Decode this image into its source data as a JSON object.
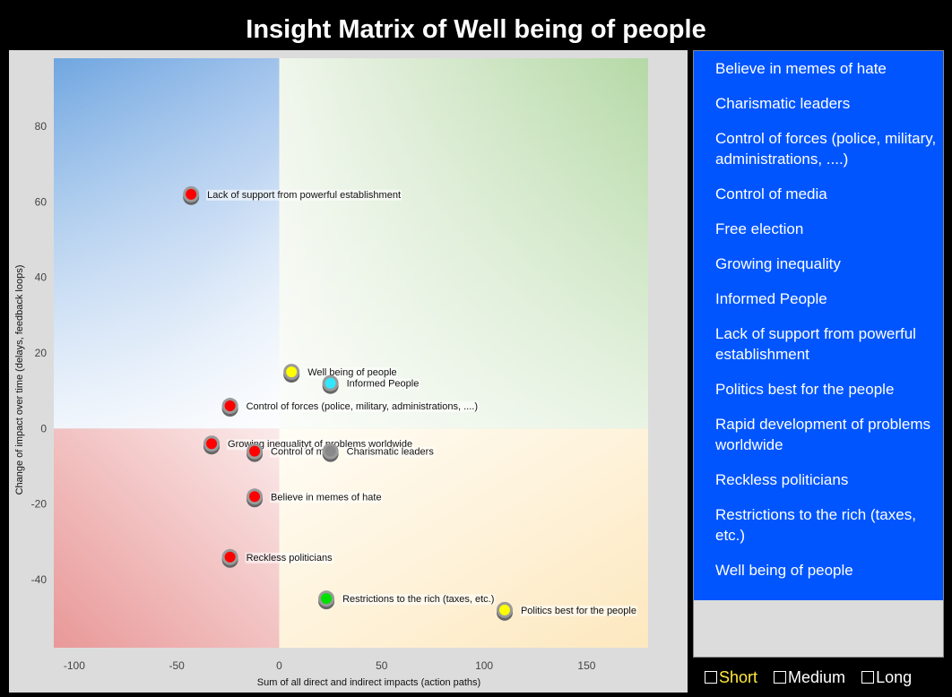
{
  "title": "Insight Matrix of Well being of people",
  "chart_data": {
    "type": "scatter",
    "xlabel": "Sum of all direct and indirect impacts (action paths)",
    "ylabel": "Change of impact over time (delays, feedback loops)",
    "xlim": [
      -110,
      180
    ],
    "ylim": [
      -58,
      98
    ],
    "xticks": [
      -100,
      -50,
      0,
      50,
      100,
      150
    ],
    "yticks": [
      80,
      60,
      40,
      20,
      0,
      -20,
      -40
    ],
    "points": [
      {
        "label": "Lack of support from powerful establishment",
        "x": -43,
        "y": 62,
        "color": "#ff0000"
      },
      {
        "label": "Well being of people",
        "x": 6,
        "y": 15,
        "color": "#ffff00"
      },
      {
        "label": "Informed People",
        "x": 25,
        "y": 12,
        "color": "#33e6ff"
      },
      {
        "label": "Control of forces (police, military, administrations, ....)",
        "x": -24,
        "y": 6,
        "color": "#ff0000"
      },
      {
        "label": "Growing inequality",
        "x": -33,
        "y": -4,
        "color": "#ff0000"
      },
      {
        "label": "Rapid development of problems worldwide",
        "x": -33,
        "y": -4,
        "color": "#ff0000"
      },
      {
        "label": "Control of media",
        "x": -12,
        "y": -6,
        "color": "#ff0000"
      },
      {
        "label": "Charismatic leaders",
        "x": 25,
        "y": -6,
        "color": "#888888"
      },
      {
        "label": "Believe in memes of hate",
        "x": -12,
        "y": -18,
        "color": "#ff0000"
      },
      {
        "label": "Reckless politicians",
        "x": -24,
        "y": -34,
        "color": "#ff0000"
      },
      {
        "label": "Restrictions to the rich (taxes, etc.)",
        "x": 23,
        "y": -45,
        "color": "#00e000"
      },
      {
        "label": "Politics best for the people",
        "x": 110,
        "y": -48,
        "color": "#ffff00"
      }
    ],
    "label_overrides": {
      "Growing inequality": "Growing inequalityt of problems worldwide",
      "Rapid development of problems worldwide": "",
      "Control of media": "Control of medi",
      "Well being of people": "Well being of people"
    }
  },
  "list": [
    "Believe in memes of hate",
    "Charismatic leaders",
    "Control of forces (police, military, administrations, ....)",
    "Control of media",
    "Free election",
    "Growing inequality",
    "Informed People",
    "Lack of support from powerful establishment",
    "Politics best for the people",
    "Rapid development of problems worldwide",
    "Reckless politicians",
    "Restrictions to the rich (taxes, etc.)",
    "Well being of people"
  ],
  "legend": {
    "short": "Short",
    "medium": "Medium",
    "long": "Long"
  }
}
